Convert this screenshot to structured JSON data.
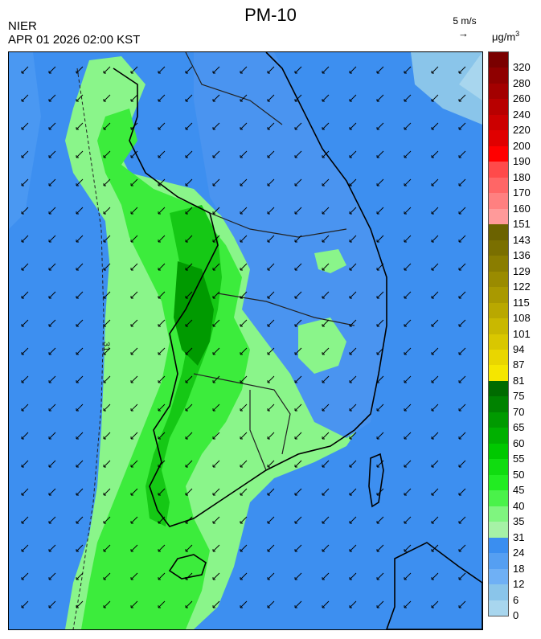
{
  "header": {
    "title": "PM-10",
    "agency": "NIER",
    "timestamp": "APR 01 2026 02:00 KST",
    "wind_reference": "5 m/s",
    "wind_reference_arrow": "→",
    "unit_base": "μg/m",
    "unit_exp": "3"
  },
  "legend": {
    "labels": [
      "320",
      "280",
      "260",
      "240",
      "220",
      "200",
      "190",
      "180",
      "170",
      "160",
      "151",
      "143",
      "136",
      "129",
      "122",
      "115",
      "108",
      "101",
      "94",
      "87",
      "81",
      "75",
      "70",
      "65",
      "60",
      "55",
      "50",
      "45",
      "40",
      "35",
      "31",
      "24",
      "18",
      "12",
      "6",
      "0"
    ],
    "colors": [
      "#7a0000",
      "#8f0000",
      "#a30000",
      "#b80000",
      "#cc0000",
      "#e00000",
      "#ff0000",
      "#ff4a4a",
      "#ff6666",
      "#ff8080",
      "#ff9a9a",
      "#6b6200",
      "#7a6f00",
      "#8a7d00",
      "#9a8b00",
      "#a99900",
      "#b9a800",
      "#c9b800",
      "#d9c700",
      "#e9d600",
      "#f5e600",
      "#006b00",
      "#008200",
      "#009a00",
      "#00b000",
      "#00c800",
      "#10dc10",
      "#22ec22",
      "#4af24a",
      "#7ff57f",
      "#a6f2a6",
      "#3a8ef0",
      "#559ff2",
      "#6fb0f5",
      "#8ac5ea",
      "#a8d6ee"
    ]
  },
  "map": {
    "contour_label": "31",
    "wind_direction": "southwest",
    "sea_color": "#3d8ff0",
    "land_low_color": "#4a94f0",
    "high_pm_color": "#2fe02f"
  }
}
